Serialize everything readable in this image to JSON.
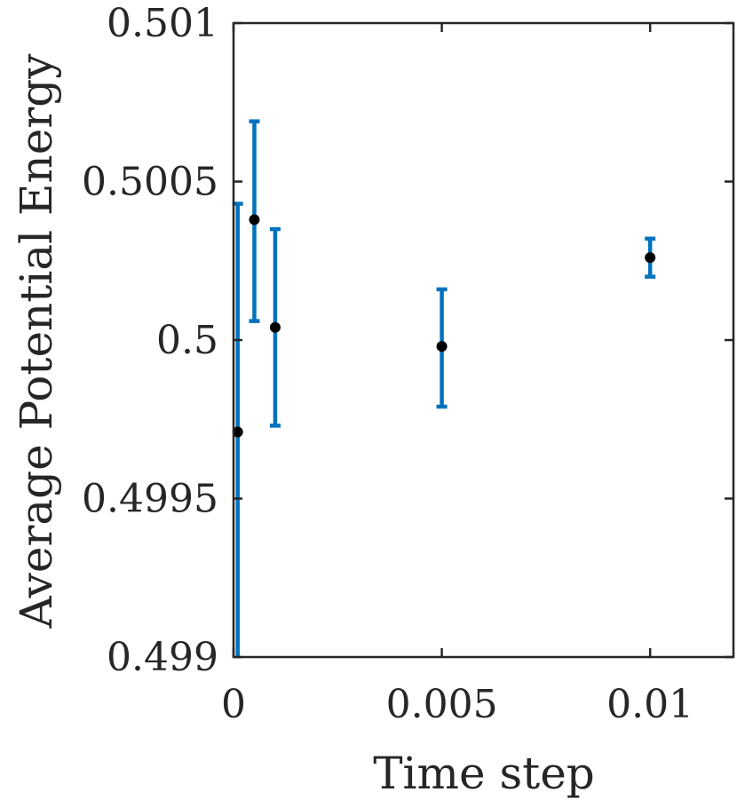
{
  "chart_data": {
    "type": "scatter",
    "title": "",
    "xlabel": "Time step",
    "ylabel": "Average Potential Energy",
    "xlim": [
      0,
      0.012
    ],
    "ylim": [
      0.499,
      0.501
    ],
    "xticks": [
      0,
      0.005,
      0.01
    ],
    "xtick_labels": [
      "0",
      "0.005",
      "0.01"
    ],
    "yticks": [
      0.499,
      0.4995,
      0.5,
      0.5005,
      0.501
    ],
    "ytick_labels": [
      "0.499",
      "0.4995",
      "0.5",
      "0.5005",
      "0.501"
    ],
    "grid": false,
    "legend": "none",
    "colors": {
      "error_bar": "#0072BD",
      "marker": "#000000",
      "axis": "#262626"
    },
    "series": [
      {
        "x": [
          0.0001,
          0.0005,
          0.001,
          0.005,
          0.01
        ],
        "y": [
          0.49971,
          0.50038,
          0.50004,
          0.49998,
          0.50026
        ],
        "err_low": [
          0.49899,
          0.50006,
          0.49973,
          0.49979,
          0.5002
        ],
        "err_high": [
          0.50043,
          0.50069,
          0.50035,
          0.50016,
          0.50032
        ]
      }
    ]
  }
}
